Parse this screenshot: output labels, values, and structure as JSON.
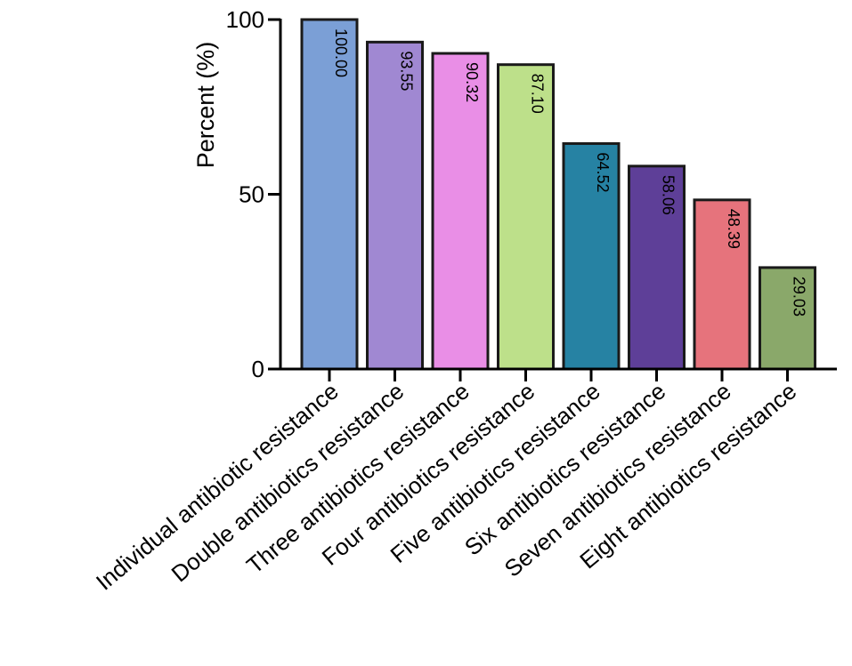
{
  "chart_data": {
    "type": "bar",
    "ylabel": "Percent (%)",
    "xlabel": "",
    "ylim": [
      0,
      100
    ],
    "yticks": [
      "0",
      "50",
      "100"
    ],
    "categories": [
      "Individual antibiotic resistance",
      "Double antibiotics resistance",
      "Three antibiotics resistance",
      "Four antibiotics resistance",
      "Five antibiotics resistance",
      "Six antibiotics resistance",
      "Seven antibiotics resistance",
      "Eight antibiotics resistance"
    ],
    "values": [
      100.0,
      93.55,
      90.32,
      87.1,
      64.52,
      58.06,
      48.39,
      29.03
    ],
    "value_labels": [
      "100.00",
      "93.55",
      "90.32",
      "87.10",
      "64.52",
      "58.06",
      "48.39",
      "29.03"
    ],
    "colors": [
      "#7b9fd6",
      "#a088d2",
      "#e98ee6",
      "#bde08a",
      "#2682a3",
      "#5e3f98",
      "#e6737c",
      "#8aa86a"
    ],
    "label_colors": [
      "#000000",
      "#000000",
      "#000000",
      "#000000",
      "#000000",
      "#000000",
      "#000000",
      "#000000"
    ]
  }
}
